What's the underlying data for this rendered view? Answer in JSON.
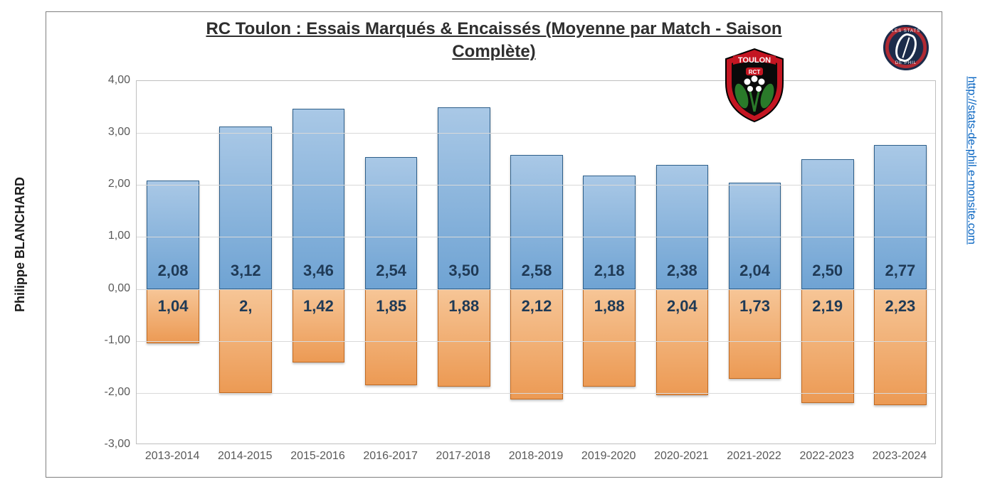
{
  "title_line1": "RC Toulon : Essais Marqués & Encaissés (Moyenne par Match - Saison",
  "title_line2": "Complète)",
  "author": "Philippe BLANCHARD",
  "site_url": "http://stats-de-phil.e-monsite.com",
  "logo_ring_top": "LES STATS",
  "logo_ring_bottom": "DE PHIL",
  "shield_top_text": "TOULON",
  "shield_sub_text": "RCT",
  "chart": {
    "type": "bar",
    "ylim": [
      -3.0,
      4.0
    ],
    "ytick_step": 1.0,
    "yticks": [
      "4,00",
      "3,00",
      "2,00",
      "1,00",
      "0,00",
      "-1,00",
      "-2,00",
      "-3,00"
    ],
    "grid_color": "#d9d9d9",
    "border_color": "#bfbfbf",
    "label_fontsize": 16,
    "value_fontsize": 22,
    "seasons": [
      "2013-2014",
      "2014-2015",
      "2015-2016",
      "2016-2017",
      "2017-2018",
      "2018-2019",
      "2019-2020",
      "2020-2021",
      "2021-2022",
      "2022-2023",
      "2023-2024"
    ],
    "positive_values": [
      2.08,
      3.12,
      3.46,
      2.54,
      3.5,
      2.58,
      2.18,
      2.38,
      2.04,
      2.5,
      2.77
    ],
    "positive_labels": [
      "2,08",
      "3,12",
      "3,46",
      "2,54",
      "3,50",
      "2,58",
      "2,18",
      "2,38",
      "2,04",
      "2,50",
      "2,77"
    ],
    "negative_values": [
      -1.04,
      -2.0,
      -1.42,
      -1.85,
      -1.88,
      -2.12,
      -1.88,
      -2.04,
      -1.73,
      -2.19,
      -2.23
    ],
    "negative_labels": [
      "1,04",
      "2,",
      "1,42",
      "1,85",
      "1,88",
      "2,12",
      "1,88",
      "2,04",
      "1,73",
      "2,19",
      "2,23"
    ],
    "pos_fill_top": "#a9c8e6",
    "pos_fill_bottom": "#6fa3d3",
    "pos_border": "#2e5f8a",
    "neg_fill_top": "#f6c596",
    "neg_fill_bottom": "#ec9a54",
    "neg_border": "#c06a22",
    "background_color": "#ffffff",
    "bar_width_ratio": 0.72,
    "shield_position": {
      "season_index": 8,
      "y_value": 3.5
    },
    "shield_colors": {
      "outer": "#c41622",
      "inner": "#0a0a0a",
      "banner": "#c41622",
      "flower": "#ffffff",
      "leaves": "#2a7a2a"
    }
  }
}
